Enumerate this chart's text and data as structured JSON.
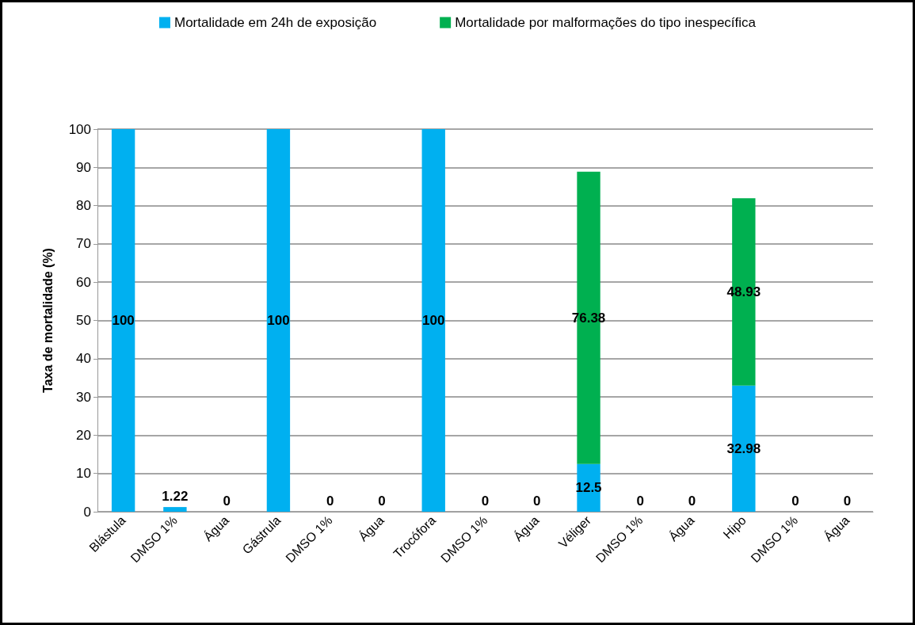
{
  "chart_data": {
    "type": "bar",
    "stacked": true,
    "ylabel": "Taxa de mortalidade (%)",
    "categories": [
      "Blástula",
      "DMSO 1%",
      "Água",
      "Gástrula",
      "DMSO 1%",
      "Água",
      "Trocófora",
      "DMSO 1%",
      "Água",
      "Véliger",
      "DMSO 1%",
      "Água",
      "Hipo",
      "DMSO 1%",
      "Água"
    ],
    "series": [
      {
        "name": "Mortalidade em 24h de exposição",
        "color": "#00b0f0",
        "values": [
          100,
          1.22,
          null,
          100,
          null,
          null,
          100,
          null,
          null,
          12.5,
          null,
          null,
          32.98,
          null,
          null
        ]
      },
      {
        "name": "Mortalidade por malformações do tipo inespecífica",
        "color": "#00b050",
        "values": [
          null,
          null,
          0,
          null,
          0,
          0,
          null,
          0,
          0,
          76.38,
          0,
          0,
          48.93,
          0,
          0
        ]
      }
    ],
    "ylim": [
      0,
      100
    ],
    "yticks": [
      0,
      10,
      20,
      30,
      40,
      50,
      60,
      70,
      80,
      90,
      100
    ],
    "grid": "y",
    "legend": "top",
    "data_labels": true
  }
}
